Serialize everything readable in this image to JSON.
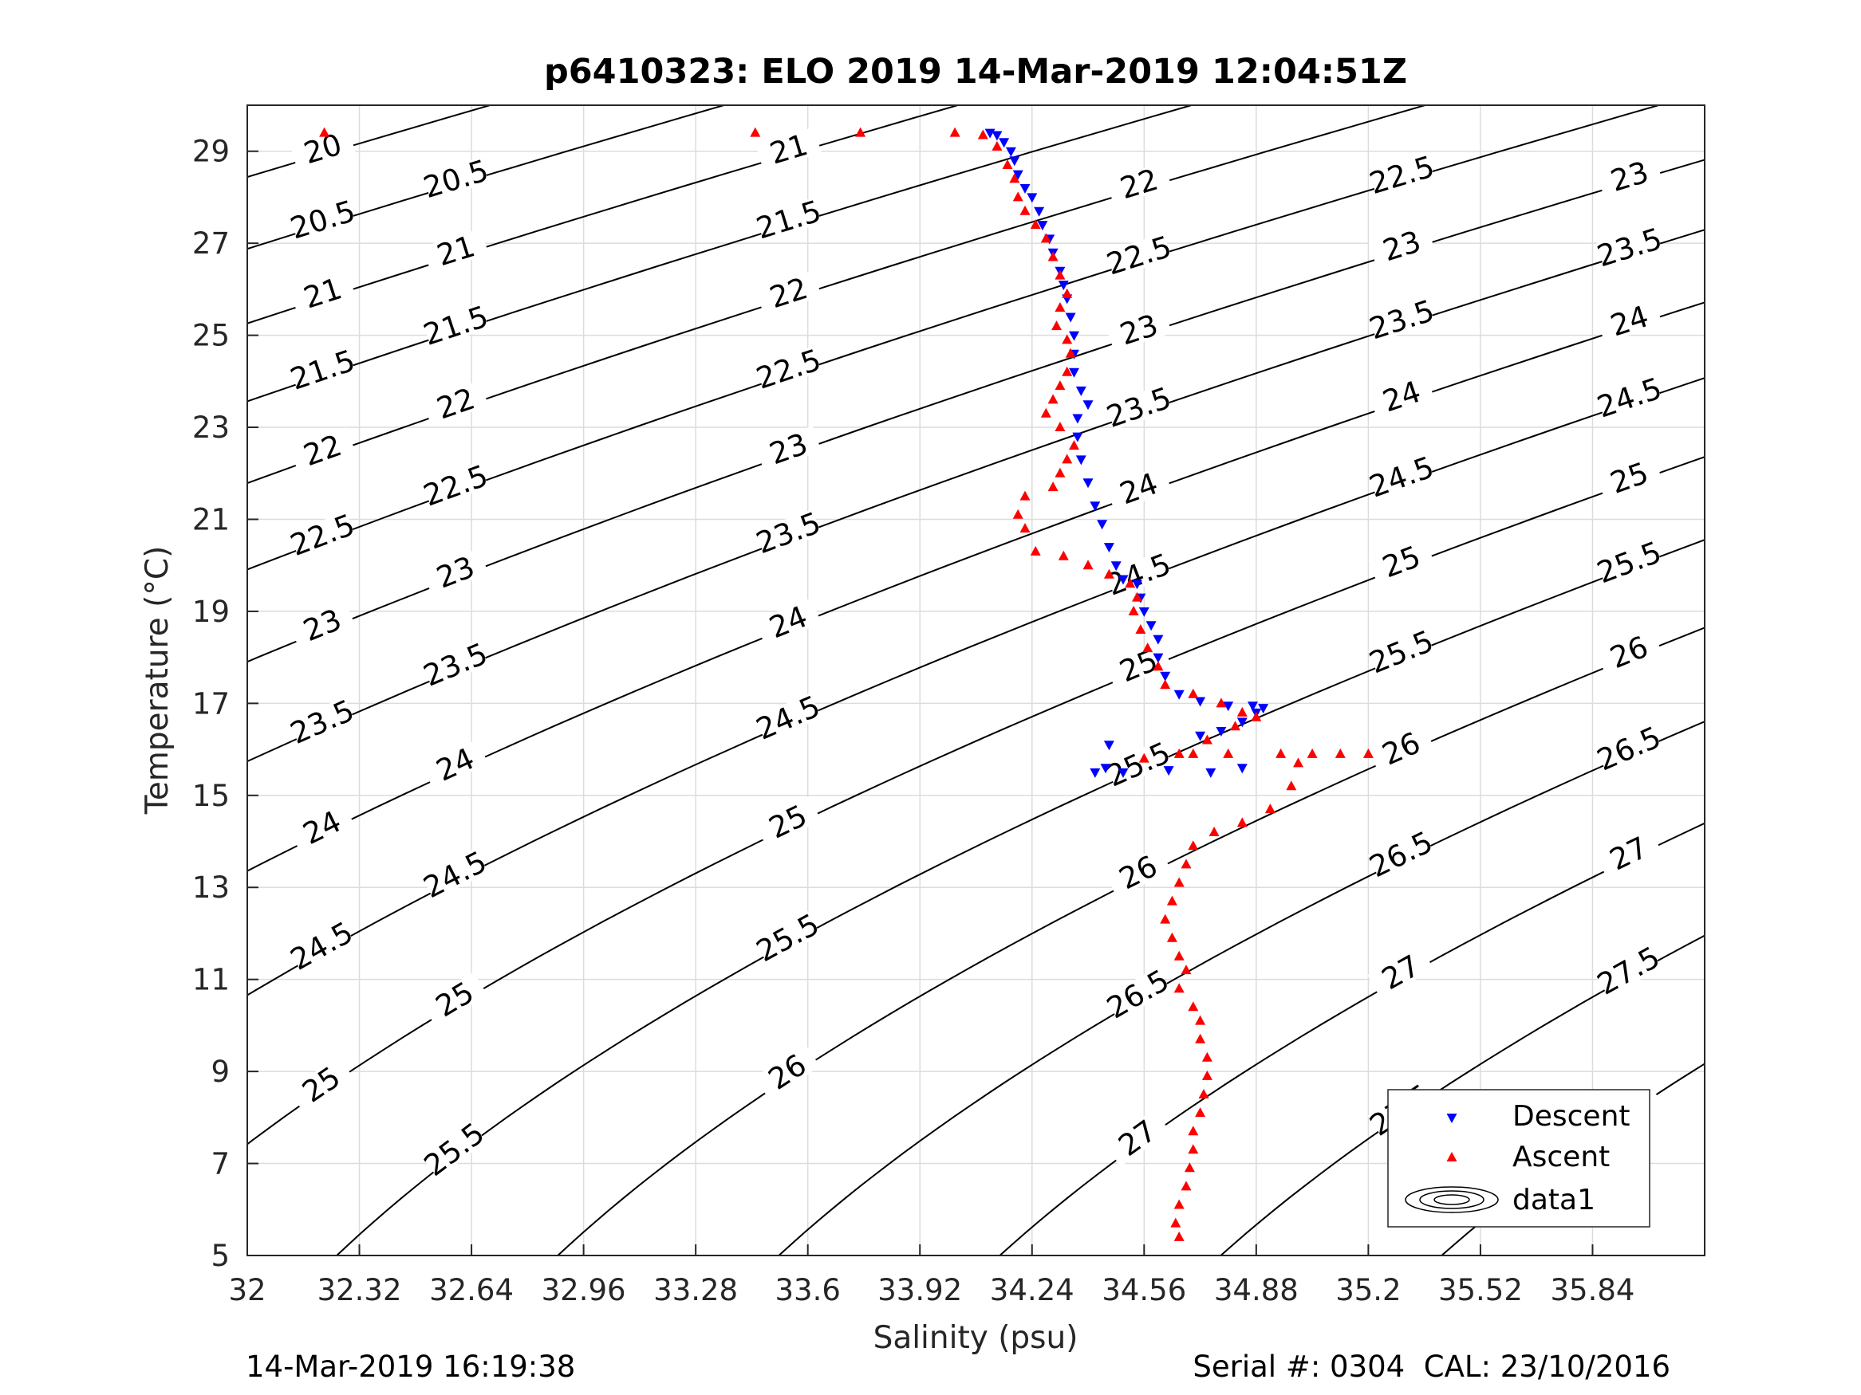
{
  "chart_data": {
    "type": "scatter",
    "title": "p6410323: ELO 2019 14-Mar-2019 12:04:51Z",
    "xlabel": "Salinity (psu)",
    "ylabel": "Temperature (°C)",
    "xlim": [
      32,
      36.16
    ],
    "ylim": [
      5,
      30
    ],
    "x_ticks": [
      32,
      32.32,
      32.64,
      32.96,
      33.28,
      33.6,
      33.92,
      34.24,
      34.56,
      34.88,
      35.2,
      35.52,
      35.84
    ],
    "y_ticks": [
      5,
      7,
      9,
      11,
      13,
      15,
      17,
      19,
      21,
      23,
      25,
      27,
      29
    ],
    "grid": true,
    "legend_position": "bottom-right",
    "legend": [
      "Descent",
      "Ascent",
      "data1"
    ],
    "series": [
      {
        "name": "Descent",
        "marker": "triangle-down",
        "color": "#0000ff",
        "points": [
          [
            34.12,
            29.4
          ],
          [
            34.14,
            29.35
          ],
          [
            34.16,
            29.2
          ],
          [
            34.18,
            29.0
          ],
          [
            34.19,
            28.8
          ],
          [
            34.2,
            28.5
          ],
          [
            34.22,
            28.2
          ],
          [
            34.24,
            28.0
          ],
          [
            34.26,
            27.7
          ],
          [
            34.27,
            27.4
          ],
          [
            34.29,
            27.1
          ],
          [
            34.3,
            26.8
          ],
          [
            34.32,
            26.4
          ],
          [
            34.33,
            26.1
          ],
          [
            34.34,
            25.8
          ],
          [
            34.35,
            25.4
          ],
          [
            34.36,
            25.0
          ],
          [
            34.36,
            24.6
          ],
          [
            34.36,
            24.2
          ],
          [
            34.38,
            23.8
          ],
          [
            34.4,
            23.5
          ],
          [
            34.37,
            23.2
          ],
          [
            34.37,
            22.8
          ],
          [
            34.38,
            22.3
          ],
          [
            34.4,
            21.8
          ],
          [
            34.42,
            21.3
          ],
          [
            34.44,
            20.9
          ],
          [
            34.46,
            20.4
          ],
          [
            34.48,
            20.0
          ],
          [
            34.5,
            19.7
          ],
          [
            34.54,
            19.6
          ],
          [
            34.55,
            19.3
          ],
          [
            34.56,
            19.0
          ],
          [
            34.58,
            18.7
          ],
          [
            34.6,
            18.4
          ],
          [
            34.6,
            18.0
          ],
          [
            34.62,
            17.6
          ],
          [
            34.66,
            17.2
          ],
          [
            34.72,
            17.05
          ],
          [
            34.8,
            16.95
          ],
          [
            34.87,
            16.95
          ],
          [
            34.9,
            16.9
          ],
          [
            34.88,
            16.8
          ],
          [
            34.84,
            16.6
          ],
          [
            34.78,
            16.4
          ],
          [
            34.72,
            16.3
          ],
          [
            34.46,
            16.1
          ],
          [
            34.45,
            15.6
          ],
          [
            34.42,
            15.5
          ],
          [
            34.5,
            15.5
          ],
          [
            34.63,
            15.55
          ],
          [
            34.75,
            15.5
          ],
          [
            34.84,
            15.6
          ]
        ]
      },
      {
        "name": "Ascent",
        "marker": "triangle-up",
        "color": "#ff0000",
        "points": [
          [
            32.22,
            29.4
          ],
          [
            33.45,
            29.4
          ],
          [
            33.75,
            29.4
          ],
          [
            34.02,
            29.4
          ],
          [
            34.1,
            29.35
          ],
          [
            34.14,
            29.1
          ],
          [
            34.17,
            28.7
          ],
          [
            34.19,
            28.4
          ],
          [
            34.2,
            28.0
          ],
          [
            34.22,
            27.7
          ],
          [
            34.25,
            27.4
          ],
          [
            34.28,
            27.1
          ],
          [
            34.3,
            26.7
          ],
          [
            34.32,
            26.3
          ],
          [
            34.34,
            25.9
          ],
          [
            34.32,
            25.6
          ],
          [
            34.31,
            25.2
          ],
          [
            34.34,
            24.9
          ],
          [
            34.35,
            24.6
          ],
          [
            34.34,
            24.2
          ],
          [
            34.32,
            23.9
          ],
          [
            34.3,
            23.6
          ],
          [
            34.28,
            23.3
          ],
          [
            34.32,
            23.0
          ],
          [
            34.36,
            22.6
          ],
          [
            34.34,
            22.3
          ],
          [
            34.32,
            22.0
          ],
          [
            34.3,
            21.7
          ],
          [
            34.22,
            21.5
          ],
          [
            34.2,
            21.1
          ],
          [
            34.22,
            20.8
          ],
          [
            34.25,
            20.3
          ],
          [
            34.33,
            20.2
          ],
          [
            34.4,
            20.0
          ],
          [
            34.46,
            19.8
          ],
          [
            34.52,
            19.6
          ],
          [
            34.54,
            19.3
          ],
          [
            34.53,
            19.0
          ],
          [
            34.55,
            18.6
          ],
          [
            34.57,
            18.2
          ],
          [
            34.6,
            17.8
          ],
          [
            34.62,
            17.4
          ],
          [
            34.7,
            17.2
          ],
          [
            34.78,
            17.0
          ],
          [
            34.84,
            16.8
          ],
          [
            34.88,
            16.7
          ],
          [
            34.82,
            16.5
          ],
          [
            34.74,
            16.2
          ],
          [
            34.66,
            15.9
          ],
          [
            34.56,
            15.8
          ],
          [
            34.7,
            15.9
          ],
          [
            34.8,
            15.9
          ],
          [
            34.95,
            15.9
          ],
          [
            35.04,
            15.9
          ],
          [
            35.12,
            15.9
          ],
          [
            35.2,
            15.9
          ],
          [
            35.0,
            15.7
          ],
          [
            34.98,
            15.2
          ],
          [
            34.92,
            14.7
          ],
          [
            34.84,
            14.4
          ],
          [
            34.76,
            14.2
          ],
          [
            34.7,
            13.9
          ],
          [
            34.68,
            13.5
          ],
          [
            34.66,
            13.1
          ],
          [
            34.64,
            12.7
          ],
          [
            34.62,
            12.3
          ],
          [
            34.64,
            11.9
          ],
          [
            34.66,
            11.5
          ],
          [
            34.68,
            11.2
          ],
          [
            34.66,
            10.8
          ],
          [
            34.7,
            10.4
          ],
          [
            34.72,
            10.1
          ],
          [
            34.72,
            9.7
          ],
          [
            34.74,
            9.3
          ],
          [
            34.74,
            8.9
          ],
          [
            34.73,
            8.5
          ],
          [
            34.72,
            8.1
          ],
          [
            34.7,
            7.7
          ],
          [
            34.7,
            7.3
          ],
          [
            34.69,
            6.9
          ],
          [
            34.68,
            6.5
          ],
          [
            34.66,
            6.1
          ],
          [
            34.65,
            5.7
          ],
          [
            34.66,
            5.4
          ]
        ]
      },
      {
        "name": "data1",
        "type": "contour",
        "quantity": "potential density anomaly (sigma-theta)",
        "levels": [
          20,
          20.5,
          21,
          21.5,
          22,
          22.5,
          23,
          23.5,
          24,
          24.5,
          25,
          25.5,
          26,
          26.5,
          27,
          27.5,
          28
        ]
      }
    ]
  },
  "footer": {
    "timestamp": "14-Mar-2019 16:19:38",
    "serial": "Serial #: 0304  CAL: 23/10/2016"
  }
}
